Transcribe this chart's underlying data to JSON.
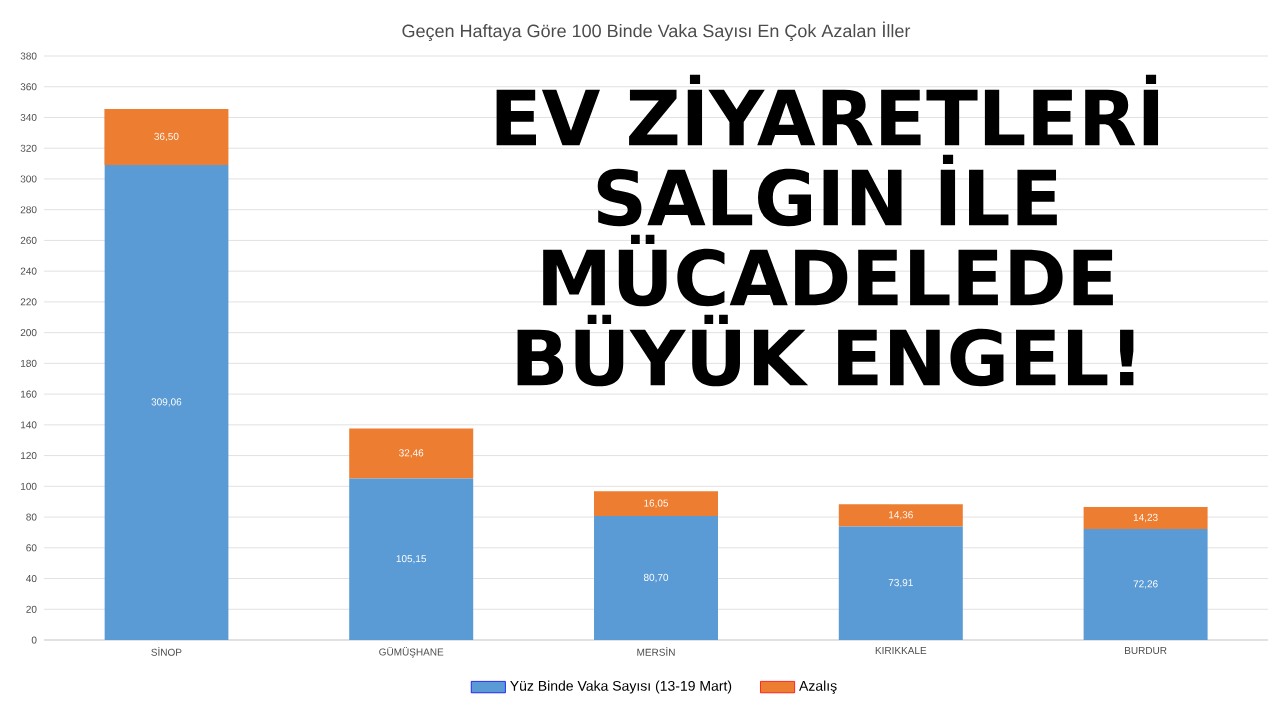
{
  "chart_data": {
    "type": "bar",
    "stacked": true,
    "title": "Geçen Haftaya Göre 100 Binde Vaka Sayısı En Çok Azalan İller",
    "categories": [
      "SİNOP",
      "GÜMÜŞHANE",
      "MERSİN",
      "KIRIKKALE",
      "BURDUR"
    ],
    "series": [
      {
        "name": "Yüz Binde Vaka Sayısı (13-19 Mart)",
        "color": "#5b9bd5",
        "values": [
          309.06,
          105.15,
          80.7,
          73.91,
          72.26
        ],
        "value_labels": [
          "309,06",
          "105,15",
          "80,70",
          "73,91",
          "72,26"
        ]
      },
      {
        "name": "Azalış",
        "color": "#ed7d31",
        "values": [
          36.5,
          32.46,
          16.05,
          14.36,
          14.23
        ],
        "value_labels": [
          "36,50",
          "32,46",
          "16,05",
          "14,36",
          "14,23"
        ]
      }
    ],
    "ylim": [
      0,
      380
    ],
    "yticks": [
      0,
      20,
      40,
      60,
      80,
      100,
      120,
      140,
      160,
      180,
      200,
      220,
      240,
      260,
      280,
      300,
      320,
      340,
      360,
      380
    ],
    "grid": "y",
    "legend": "bottom",
    "annotations": [
      "EV ZİYARETLERİ SALGIN İLE MÜCADELEDE BÜYÜK ENGEL!"
    ]
  }
}
